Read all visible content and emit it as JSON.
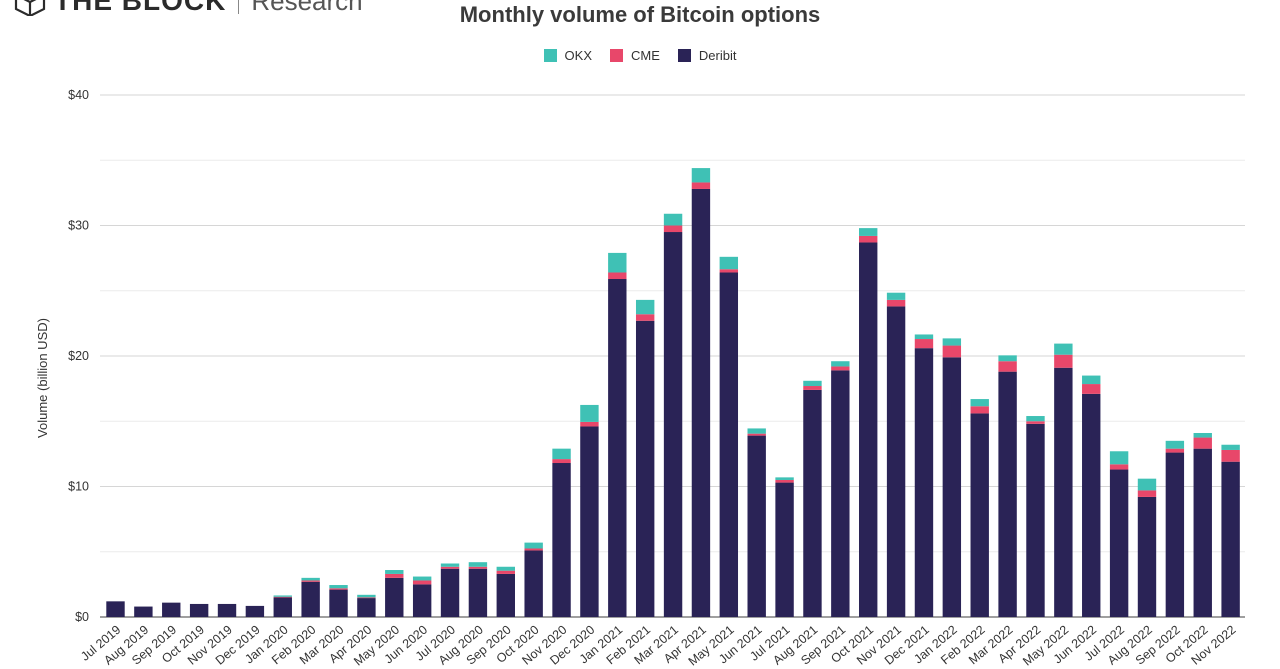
{
  "brand": {
    "name": "THE BLOCK",
    "sub": "Research",
    "logo_icon": "cube-icon"
  },
  "chart_data": {
    "type": "bar",
    "stacked": true,
    "title": "Monthly volume of Bitcoin options",
    "xlabel": "",
    "ylabel": "Volume (billion USD)",
    "ylim": [
      0,
      40
    ],
    "yticks": [
      0,
      10,
      20,
      30,
      40
    ],
    "ytick_labels": [
      "$0",
      "$10",
      "$20",
      "$30",
      "$40"
    ],
    "grid": true,
    "legend_position": "top-center",
    "legend_order": [
      "OKX",
      "CME",
      "Deribit"
    ],
    "categories": [
      "Jul 2019",
      "Aug 2019",
      "Sep 2019",
      "Oct 2019",
      "Nov 2019",
      "Dec 2019",
      "Jan 2020",
      "Feb 2020",
      "Mar 2020",
      "Apr 2020",
      "May 2020",
      "Jun 2020",
      "Jul 2020",
      "Aug 2020",
      "Sep 2020",
      "Oct 2020",
      "Nov 2020",
      "Dec 2020",
      "Jan 2021",
      "Feb 2021",
      "Mar 2021",
      "Apr 2021",
      "May 2021",
      "Jun 2021",
      "Jul 2021",
      "Aug 2021",
      "Sep 2021",
      "Oct 2021",
      "Nov 2021",
      "Dec 2021",
      "Jan 2022",
      "Feb 2022",
      "Mar 2022",
      "Apr 2022",
      "May 2022",
      "Jun 2022",
      "Jul 2022",
      "Aug 2022",
      "Sep 2022",
      "Oct 2022",
      "Nov 2022"
    ],
    "series": [
      {
        "name": "Deribit",
        "color": "#2a2356",
        "values": [
          1.2,
          0.8,
          1.1,
          1.0,
          1.0,
          0.85,
          1.5,
          2.7,
          2.1,
          1.45,
          3.0,
          2.5,
          3.7,
          3.7,
          3.3,
          5.1,
          11.8,
          14.6,
          25.9,
          22.7,
          29.5,
          32.8,
          26.4,
          13.9,
          10.3,
          17.4,
          18.9,
          28.7,
          23.8,
          20.6,
          19.9,
          15.6,
          18.8,
          14.8,
          19.1,
          17.1,
          11.3,
          9.2,
          12.6,
          12.9,
          11.9
        ]
      },
      {
        "name": "CME",
        "color": "#e8476a",
        "values": [
          0,
          0,
          0,
          0,
          0,
          0,
          0.05,
          0.1,
          0.1,
          0.05,
          0.3,
          0.3,
          0.15,
          0.15,
          0.25,
          0.15,
          0.3,
          0.35,
          0.5,
          0.5,
          0.5,
          0.5,
          0.25,
          0.15,
          0.2,
          0.3,
          0.3,
          0.5,
          0.5,
          0.7,
          0.9,
          0.55,
          0.8,
          0.2,
          1.0,
          0.75,
          0.4,
          0.5,
          0.3,
          0.85,
          0.9
        ]
      },
      {
        "name": "OKX",
        "color": "#3fc1b5",
        "values": [
          0,
          0,
          0,
          0,
          0,
          0,
          0.1,
          0.2,
          0.25,
          0.2,
          0.3,
          0.3,
          0.25,
          0.35,
          0.3,
          0.45,
          0.8,
          1.3,
          1.5,
          1.1,
          0.9,
          1.1,
          0.95,
          0.4,
          0.2,
          0.4,
          0.4,
          0.6,
          0.55,
          0.35,
          0.55,
          0.55,
          0.45,
          0.4,
          0.85,
          0.65,
          1.0,
          0.9,
          0.6,
          0.35,
          0.4
        ]
      }
    ]
  }
}
